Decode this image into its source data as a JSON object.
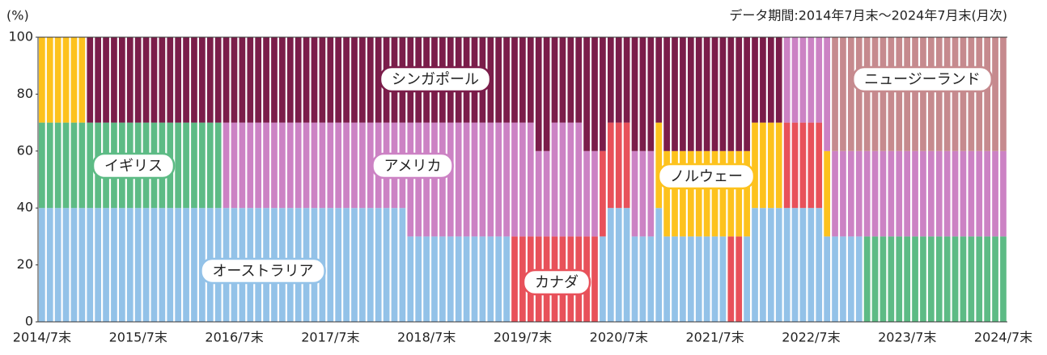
{
  "chart_data": {
    "type": "bar_stacked",
    "note": "データ期間:2014年7月末～2024年7月末(月次)",
    "y_label": "(%)",
    "categories": [
      "2014/7末",
      null,
      null,
      null,
      null,
      null,
      null,
      null,
      null,
      null,
      null,
      null,
      "2015/7末",
      null,
      null,
      null,
      null,
      null,
      null,
      null,
      null,
      null,
      null,
      null,
      "2016/7末",
      null,
      null,
      null,
      null,
      null,
      null,
      null,
      null,
      null,
      null,
      null,
      "2017/7末",
      null,
      null,
      null,
      null,
      null,
      null,
      null,
      null,
      null,
      null,
      null,
      "2018/7末",
      null,
      null,
      null,
      null,
      null,
      null,
      null,
      null,
      null,
      null,
      null,
      "2019/7末",
      null,
      null,
      null,
      null,
      null,
      null,
      null,
      null,
      null,
      null,
      null,
      "2020/7末",
      null,
      null,
      null,
      null,
      null,
      null,
      null,
      null,
      null,
      null,
      null,
      "2021/7末",
      null,
      null,
      null,
      null,
      null,
      null,
      null,
      null,
      null,
      null,
      null,
      "2022/7末",
      null,
      null,
      null,
      null,
      null,
      null,
      null,
      null,
      null,
      null,
      null,
      "2023/7末",
      null,
      null,
      null,
      null,
      null,
      null,
      null,
      null,
      null,
      null,
      null,
      "2024/7末"
    ],
    "ylim": [
      0,
      100
    ],
    "yticks": [
      0,
      20,
      40,
      60,
      80,
      100
    ],
    "series": [
      {
        "name": "オーストラリア",
        "color": "#93c2e8",
        "values": [
          40,
          40,
          40,
          40,
          40,
          40,
          40,
          40,
          40,
          40,
          40,
          40,
          40,
          40,
          40,
          40,
          40,
          40,
          40,
          40,
          40,
          40,
          40,
          40,
          40,
          40,
          40,
          40,
          40,
          40,
          40,
          40,
          40,
          40,
          40,
          40,
          40,
          40,
          40,
          40,
          40,
          40,
          40,
          40,
          40,
          40,
          30,
          30,
          30,
          30,
          30,
          30,
          30,
          30,
          30,
          30,
          30,
          30,
          30,
          0,
          0,
          0,
          0,
          0,
          0,
          0,
          0,
          0,
          0,
          0,
          30,
          40,
          40,
          40,
          30,
          30,
          30,
          40,
          30,
          30,
          30,
          30,
          30,
          30,
          30,
          30,
          0,
          0,
          30,
          40,
          40,
          40,
          40,
          40,
          40,
          40,
          40,
          40,
          30,
          30,
          30,
          30,
          30,
          0,
          0,
          0,
          0,
          0,
          0,
          0,
          0,
          0,
          0,
          0,
          0,
          0,
          0,
          0,
          0,
          0,
          0
        ]
      },
      {
        "name": "イギリス",
        "color": "#5dbb85",
        "values": [
          30,
          30,
          30,
          30,
          30,
          30,
          30,
          30,
          30,
          30,
          30,
          30,
          30,
          30,
          30,
          30,
          30,
          30,
          30,
          30,
          30,
          30,
          30,
          0,
          0,
          0,
          0,
          0,
          0,
          0,
          0,
          0,
          0,
          0,
          0,
          0,
          0,
          0,
          0,
          0,
          0,
          0,
          0,
          0,
          0,
          0,
          0,
          0,
          0,
          0,
          0,
          0,
          0,
          0,
          0,
          0,
          0,
          0,
          0,
          0,
          0,
          0,
          0,
          0,
          0,
          0,
          0,
          0,
          0,
          0,
          0,
          0,
          0,
          0,
          0,
          0,
          0,
          0,
          0,
          0,
          0,
          0,
          0,
          0,
          0,
          0,
          0,
          0,
          0,
          0,
          0,
          0,
          0,
          0,
          0,
          0,
          0,
          0,
          0,
          0,
          0,
          0,
          0,
          30,
          30,
          30,
          30,
          30,
          30,
          30,
          30,
          30,
          30,
          30,
          30,
          30,
          30,
          30,
          30,
          30,
          30
        ]
      },
      {
        "name": "カナダ",
        "color": "#e8515a",
        "values": [
          0,
          0,
          0,
          0,
          0,
          0,
          0,
          0,
          0,
          0,
          0,
          0,
          0,
          0,
          0,
          0,
          0,
          0,
          0,
          0,
          0,
          0,
          0,
          0,
          0,
          0,
          0,
          0,
          0,
          0,
          0,
          0,
          0,
          0,
          0,
          0,
          0,
          0,
          0,
          0,
          0,
          0,
          0,
          0,
          0,
          0,
          0,
          0,
          0,
          0,
          0,
          0,
          0,
          0,
          0,
          0,
          0,
          0,
          0,
          30,
          30,
          30,
          30,
          30,
          30,
          30,
          30,
          30,
          30,
          30,
          30,
          30,
          30,
          30,
          0,
          0,
          0,
          0,
          0,
          0,
          0,
          0,
          0,
          0,
          0,
          0,
          30,
          30,
          0,
          0,
          0,
          0,
          0,
          30,
          30,
          30,
          30,
          30,
          0,
          0,
          0,
          0,
          0,
          0,
          0,
          0,
          0,
          0,
          0,
          0,
          0,
          0,
          0,
          0,
          0,
          0,
          0,
          0,
          0,
          0,
          0
        ]
      },
      {
        "name": "ノルウェー",
        "color": "#fdc21d",
        "values": [
          30,
          30,
          30,
          30,
          30,
          30,
          0,
          0,
          0,
          0,
          0,
          0,
          0,
          0,
          0,
          0,
          0,
          0,
          0,
          0,
          0,
          0,
          0,
          0,
          0,
          0,
          0,
          0,
          0,
          0,
          0,
          0,
          0,
          0,
          0,
          0,
          0,
          0,
          0,
          0,
          0,
          0,
          0,
          0,
          0,
          0,
          0,
          0,
          0,
          0,
          0,
          0,
          0,
          0,
          0,
          0,
          0,
          0,
          0,
          0,
          0,
          0,
          0,
          0,
          0,
          0,
          0,
          0,
          0,
          0,
          0,
          0,
          0,
          0,
          0,
          0,
          0,
          30,
          30,
          30,
          30,
          30,
          30,
          30,
          30,
          30,
          30,
          30,
          30,
          30,
          30,
          30,
          30,
          0,
          0,
          0,
          0,
          0,
          30,
          0,
          0,
          0,
          0,
          0,
          0,
          0,
          0,
          0,
          0,
          0,
          0,
          0,
          0,
          0,
          0,
          0,
          0,
          0,
          0,
          0,
          0
        ]
      },
      {
        "name": "アメリカ",
        "color": "#cc82c4",
        "values": [
          0,
          0,
          0,
          0,
          0,
          0,
          0,
          0,
          0,
          0,
          0,
          0,
          0,
          0,
          0,
          0,
          0,
          0,
          0,
          0,
          0,
          0,
          0,
          30,
          30,
          30,
          30,
          30,
          30,
          30,
          30,
          30,
          30,
          30,
          30,
          30,
          30,
          30,
          30,
          30,
          30,
          30,
          30,
          30,
          30,
          30,
          40,
          40,
          40,
          40,
          40,
          40,
          40,
          40,
          40,
          40,
          40,
          40,
          40,
          40,
          40,
          40,
          30,
          30,
          40,
          40,
          40,
          40,
          30,
          30,
          0,
          0,
          0,
          0,
          30,
          30,
          30,
          0,
          0,
          0,
          0,
          0,
          0,
          0,
          0,
          0,
          0,
          0,
          0,
          0,
          0,
          0,
          0,
          30,
          30,
          30,
          30,
          30,
          40,
          30,
          30,
          30,
          30,
          30,
          30,
          30,
          30,
          30,
          30,
          30,
          30,
          30,
          30,
          30,
          30,
          30,
          30,
          30,
          30,
          30,
          30
        ]
      },
      {
        "name": "シンガポール",
        "color": "#7b1d4a",
        "values": [
          0,
          0,
          0,
          0,
          0,
          0,
          30,
          30,
          30,
          30,
          30,
          30,
          30,
          30,
          30,
          30,
          30,
          30,
          30,
          30,
          30,
          30,
          30,
          30,
          30,
          30,
          30,
          30,
          30,
          30,
          30,
          30,
          30,
          30,
          30,
          30,
          30,
          30,
          30,
          30,
          30,
          30,
          30,
          30,
          30,
          30,
          30,
          30,
          30,
          30,
          30,
          30,
          30,
          30,
          30,
          30,
          30,
          30,
          30,
          30,
          30,
          30,
          40,
          40,
          30,
          30,
          30,
          30,
          40,
          40,
          40,
          30,
          30,
          30,
          40,
          40,
          40,
          30,
          40,
          40,
          40,
          40,
          40,
          40,
          40,
          40,
          40,
          40,
          40,
          30,
          30,
          30,
          30,
          0,
          0,
          0,
          0,
          0,
          0,
          0,
          0,
          0,
          0,
          0,
          0,
          0,
          0,
          0,
          0,
          0,
          0,
          0,
          0,
          0,
          0,
          0,
          0,
          0,
          0,
          0,
          0
        ]
      },
      {
        "name": "ニュージーランド",
        "color": "#c68a8e",
        "values": [
          0,
          0,
          0,
          0,
          0,
          0,
          0,
          0,
          0,
          0,
          0,
          0,
          0,
          0,
          0,
          0,
          0,
          0,
          0,
          0,
          0,
          0,
          0,
          0,
          0,
          0,
          0,
          0,
          0,
          0,
          0,
          0,
          0,
          0,
          0,
          0,
          0,
          0,
          0,
          0,
          0,
          0,
          0,
          0,
          0,
          0,
          0,
          0,
          0,
          0,
          0,
          0,
          0,
          0,
          0,
          0,
          0,
          0,
          0,
          0,
          0,
          0,
          0,
          0,
          0,
          0,
          0,
          0,
          0,
          0,
          0,
          0,
          0,
          0,
          0,
          0,
          0,
          0,
          0,
          0,
          0,
          0,
          0,
          0,
          0,
          0,
          0,
          0,
          0,
          0,
          0,
          0,
          0,
          0,
          0,
          0,
          0,
          0,
          0,
          40,
          40,
          40,
          40,
          40,
          40,
          40,
          40,
          40,
          40,
          40,
          40,
          40,
          40,
          40,
          40,
          40,
          40,
          40,
          40,
          40,
          40
        ]
      }
    ]
  }
}
